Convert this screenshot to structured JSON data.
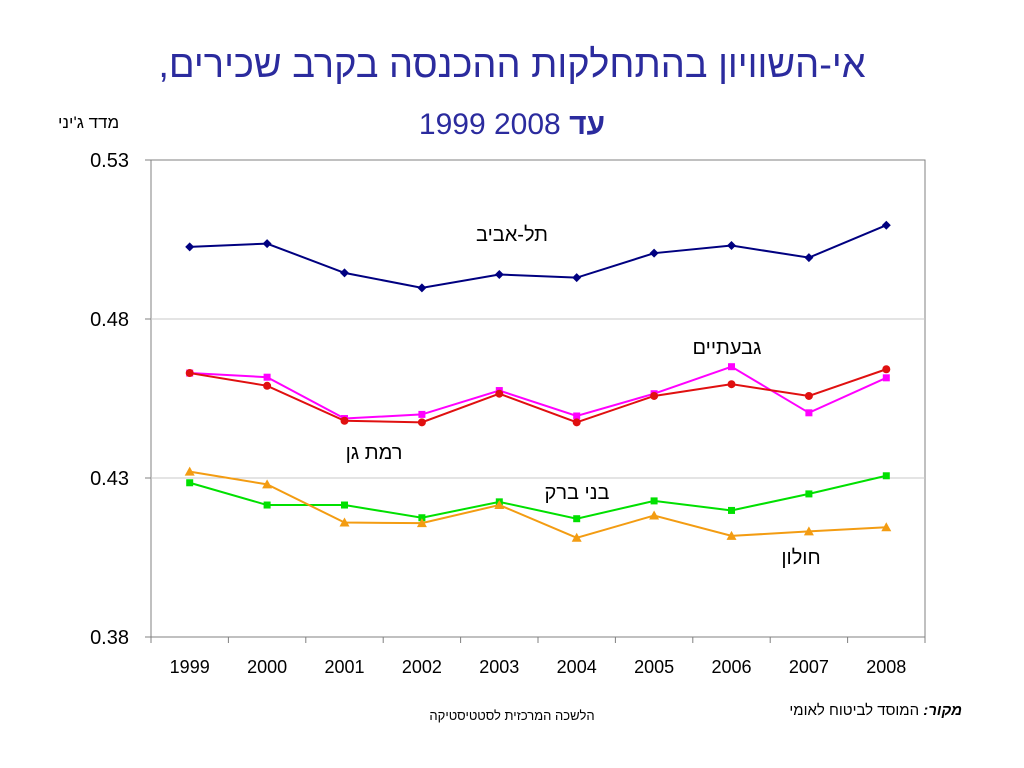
{
  "slide": {
    "title": "אי-השוויון בהתחלקות ההכנסה בקרב שכירים,",
    "subtitle_from": "1999",
    "subtitle_word": "עד",
    "subtitle_to": "2008",
    "source_label": "מקור:",
    "source_text": "המוסד לביטוח לאומי",
    "footer": "הלשכה המרכזית לסטטיסטיקה"
  },
  "chart_data": {
    "type": "line",
    "title": "",
    "ylabel": "מדד ג'יני",
    "xlabel": "",
    "ylim": [
      0.38,
      0.53
    ],
    "yticks": [
      "0.53",
      "0.48",
      "0.43",
      "0.38"
    ],
    "ytick_values": [
      0.53,
      0.48,
      0.43,
      0.38
    ],
    "grid": "horizontal",
    "legend": "none",
    "categories": [
      "1999",
      "2000",
      "2001",
      "2002",
      "2003",
      "2004",
      "2005",
      "2006",
      "2007",
      "2008"
    ],
    "series": [
      {
        "name": "תל-אביב",
        "color": "#000080",
        "marker": "diamond",
        "values": [
          0.5027,
          0.5037,
          0.4945,
          0.4898,
          0.494,
          0.493,
          0.5007,
          0.5031,
          0.4993,
          0.5095
        ]
      },
      {
        "name": "גבעתיים",
        "color": "#FF00FF",
        "marker": "square",
        "values": [
          0.463,
          0.4617,
          0.4487,
          0.45,
          0.4575,
          0.4495,
          0.4565,
          0.465,
          0.4505,
          0.4615
        ]
      },
      {
        "name": "רמת גן",
        "color": "#E01010",
        "marker": "circle",
        "values": [
          0.463,
          0.459,
          0.448,
          0.4475,
          0.4565,
          0.4475,
          0.4558,
          0.4595,
          0.4558,
          0.4642
        ]
      },
      {
        "name": "בני ברק",
        "color": "#00E000",
        "marker": "square",
        "values": [
          0.4285,
          0.4215,
          0.4215,
          0.4175,
          0.4225,
          0.4172,
          0.4228,
          0.4198,
          0.425,
          0.4307
        ]
      },
      {
        "name": "חולון",
        "color": "#F39C12",
        "marker": "triangle",
        "values": [
          0.432,
          0.428,
          0.416,
          0.4158,
          0.4215,
          0.4112,
          0.4182,
          0.4118,
          0.4132,
          0.4145
        ]
      }
    ],
    "annotations": [
      {
        "text": "תל-אביב",
        "series": 0
      },
      {
        "text": "גבעתיים",
        "series": 1
      },
      {
        "text": "רמת גן",
        "series": 2
      },
      {
        "text": "בני ברק",
        "series": 3
      },
      {
        "text": "חולון",
        "series": 4
      }
    ]
  }
}
